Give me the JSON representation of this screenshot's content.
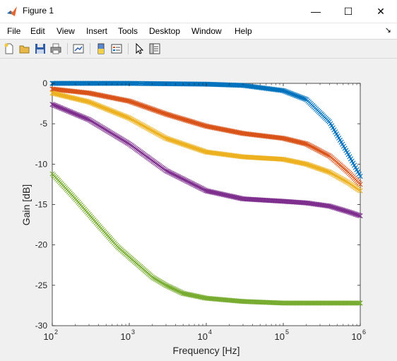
{
  "window": {
    "title": "Figure 1",
    "minimize_glyph": "—",
    "maximize_glyph": "☐",
    "close_glyph": "✕"
  },
  "menu": {
    "items": [
      "File",
      "Edit",
      "View",
      "Insert",
      "Tools",
      "Desktop",
      "Window",
      "Help"
    ],
    "overflow_glyph": "↘"
  },
  "toolbar": {
    "buttons": [
      "new-figure-icon",
      "open-file-icon",
      "save-icon",
      "print-icon",
      "link-plot-icon",
      "insert-colorbar-icon",
      "insert-legend-icon",
      "edit-plot-arrow-icon",
      "property-inspector-icon"
    ]
  },
  "chart_data": {
    "type": "line",
    "xlabel": "Frequency [Hz]",
    "ylabel": "Gain [dB]",
    "x_scale": "log",
    "xlim": [
      100,
      1000000
    ],
    "ylim": [
      -30,
      0
    ],
    "x_ticks": [
      {
        "value": 100,
        "base": "10",
        "exp": "2"
      },
      {
        "value": 1000,
        "base": "10",
        "exp": "3"
      },
      {
        "value": 10000,
        "base": "10",
        "exp": "4"
      },
      {
        "value": 100000,
        "base": "10",
        "exp": "5"
      },
      {
        "value": 1000000,
        "base": "10",
        "exp": "6"
      }
    ],
    "y_ticks": [
      "0",
      "-5",
      "-10",
      "-15",
      "-20",
      "-25",
      "-30"
    ],
    "marker": "x",
    "grid": false,
    "series": [
      {
        "color": "#0072BD",
        "x": [
          100,
          300,
          1000,
          3000,
          10000,
          30000,
          100000,
          200000,
          400000,
          700000,
          1000000
        ],
        "y": [
          0,
          0,
          0,
          -0.05,
          -0.1,
          -0.25,
          -0.9,
          -2.0,
          -4.8,
          -8.8,
          -11.5
        ]
      },
      {
        "color": "#D95319",
        "x": [
          100,
          300,
          1000,
          3000,
          10000,
          30000,
          100000,
          200000,
          400000,
          700000,
          1000000
        ],
        "y": [
          -0.7,
          -1.2,
          -2.2,
          -3.8,
          -5.3,
          -6.2,
          -6.8,
          -7.5,
          -9.0,
          -11.0,
          -12.5
        ]
      },
      {
        "color": "#EDB120",
        "x": [
          100,
          300,
          1000,
          3000,
          10000,
          30000,
          100000,
          200000,
          400000,
          700000,
          1000000
        ],
        "y": [
          -1.2,
          -2.3,
          -4.3,
          -6.8,
          -8.5,
          -9.1,
          -9.4,
          -10.0,
          -11.0,
          -12.3,
          -13.3
        ]
      },
      {
        "color": "#7E2F8E",
        "x": [
          100,
          300,
          1000,
          3000,
          10000,
          30000,
          100000,
          200000,
          400000,
          700000,
          1000000
        ],
        "y": [
          -2.6,
          -4.5,
          -7.5,
          -10.8,
          -13.3,
          -14.3,
          -14.6,
          -14.8,
          -15.2,
          -15.9,
          -16.4
        ]
      },
      {
        "color": "#77AC30",
        "x": [
          100,
          200,
          400,
          700,
          1000,
          2000,
          3000,
          5000,
          10000,
          30000,
          100000,
          300000,
          1000000
        ],
        "y": [
          -11.2,
          -14.3,
          -17.6,
          -20.2,
          -21.5,
          -24.0,
          -25.0,
          -26.0,
          -26.6,
          -27.0,
          -27.2,
          -27.2,
          -27.2
        ]
      }
    ]
  }
}
